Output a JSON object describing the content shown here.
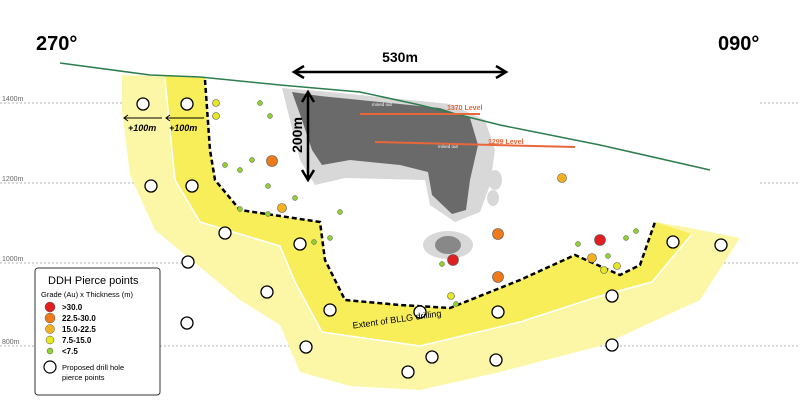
{
  "header": {
    "left": "270°",
    "right": "090°"
  },
  "dimensions": {
    "width": "530m",
    "height": "200m"
  },
  "levels": {
    "upper": "1370 Level",
    "lower": "1299 Level",
    "mined_upper": "mined out",
    "mined_lower": "mined out"
  },
  "offsets": {
    "outer": "+100m",
    "inner": "+100m"
  },
  "elevations": [
    "1400m",
    "1200m",
    "1000m",
    "800m"
  ],
  "extent_label": "Extent of BLLG drilling",
  "legend": {
    "title": "DDH Pierce points",
    "subtitle": "Grade (Au) x Thickness (m)",
    "items": [
      ">30.0",
      "22.5-30.0",
      "15.0-22.5",
      "7.5-15.0",
      "<7.5"
    ],
    "proposed": [
      "Proposed drill hole",
      "pierce points"
    ]
  }
}
